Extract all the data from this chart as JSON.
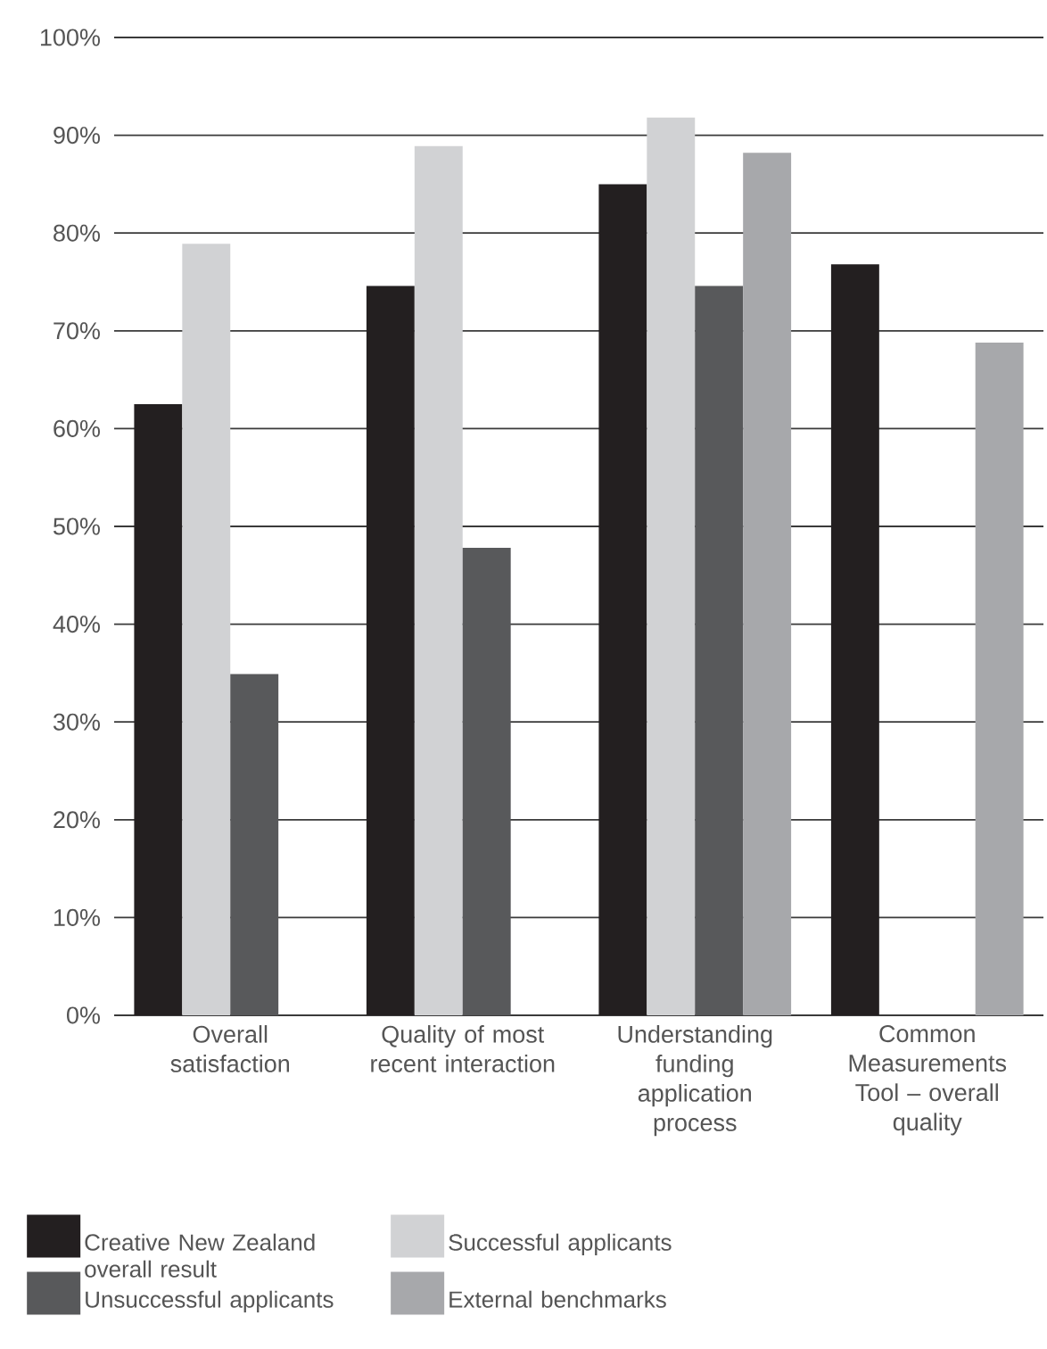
{
  "chart_data": {
    "type": "bar",
    "categories": [
      "Overall satisfaction",
      "Quality of most recent interaction",
      "Understanding funding application process",
      "Common Measurements Tool – overall quality"
    ],
    "series": [
      {
        "name": "Creative New Zealand overall result",
        "color": "#231f20",
        "values": [
          62.5,
          74.6,
          85.0,
          76.8
        ]
      },
      {
        "name": "Successful applicants",
        "color": "#d1d2d4",
        "values": [
          78.9,
          88.9,
          91.8,
          null
        ]
      },
      {
        "name": "Unsuccessful applicants",
        "color": "#58595b",
        "values": [
          34.9,
          47.8,
          74.6,
          null
        ]
      },
      {
        "name": "External benchmarks",
        "color": "#a7a8ab",
        "values": [
          null,
          null,
          88.2,
          68.8
        ]
      }
    ],
    "ylim": [
      0,
      100
    ],
    "yticks": [
      {
        "value": 0,
        "label": "0%"
      },
      {
        "value": 10,
        "label": "10%"
      },
      {
        "value": 20,
        "label": "20%"
      },
      {
        "value": 30,
        "label": "30%"
      },
      {
        "value": 40,
        "label": "40%"
      },
      {
        "value": 50,
        "label": "50%"
      },
      {
        "value": 60,
        "label": "60%"
      },
      {
        "value": 70,
        "label": "70%"
      },
      {
        "value": 80,
        "label": "80%"
      },
      {
        "value": 90,
        "label": "90%"
      },
      {
        "value": 100,
        "label": "100%"
      }
    ],
    "grid": "y",
    "legend": "bottom"
  }
}
